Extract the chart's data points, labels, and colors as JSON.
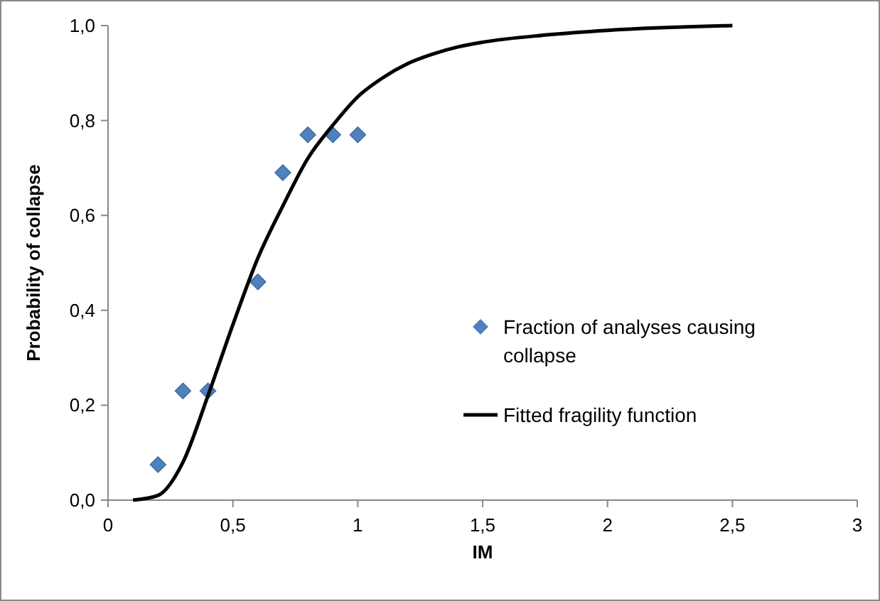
{
  "chart_data": {
    "type": "scatter",
    "xlabel": "IM",
    "ylabel": "Probability of collapse",
    "xlim": [
      0,
      3
    ],
    "ylim": [
      0,
      1
    ],
    "xticks": [
      0,
      {
        "value": 0.5,
        "label": "0,5"
      },
      1,
      {
        "value": 1.5,
        "label": "1,5"
      },
      2,
      {
        "value": 2.5,
        "label": "2,5"
      },
      3
    ],
    "yticks": [
      {
        "value": 0,
        "label": "0,0"
      },
      {
        "value": 0.2,
        "label": "0,2"
      },
      {
        "value": 0.4,
        "label": "0,4"
      },
      {
        "value": 0.6,
        "label": "0,6"
      },
      {
        "value": 0.8,
        "label": "0,8"
      },
      {
        "value": 1,
        "label": "1,0"
      }
    ],
    "grid": false,
    "legend": "right",
    "series": [
      {
        "name": "Fraction of analyses causing collapse",
        "color": "#4f81bd",
        "marker": "diamond",
        "x": [
          0.2,
          0.3,
          0.4,
          0.6,
          0.7,
          0.8,
          0.9,
          1.0
        ],
        "values": [
          0.075,
          0.23,
          0.23,
          0.46,
          0.69,
          0.77,
          0.77,
          0.77
        ]
      },
      {
        "type": "line",
        "name": "Fitted fragility function",
        "color": "#000000",
        "marker": "none",
        "x": [
          0.1,
          0.2,
          0.3,
          0.4,
          0.5,
          0.6,
          0.7,
          0.8,
          0.9,
          1.0,
          1.1,
          1.2,
          1.3,
          1.4,
          1.5,
          1.75,
          2.0,
          2.5
        ],
        "values": [
          0,
          0.01,
          0.08,
          0.22,
          0.37,
          0.51,
          0.62,
          0.72,
          0.79,
          0.85,
          0.89,
          0.92,
          0.94,
          0.955,
          0.965,
          0.98,
          0.99,
          1.0
        ]
      }
    ]
  }
}
